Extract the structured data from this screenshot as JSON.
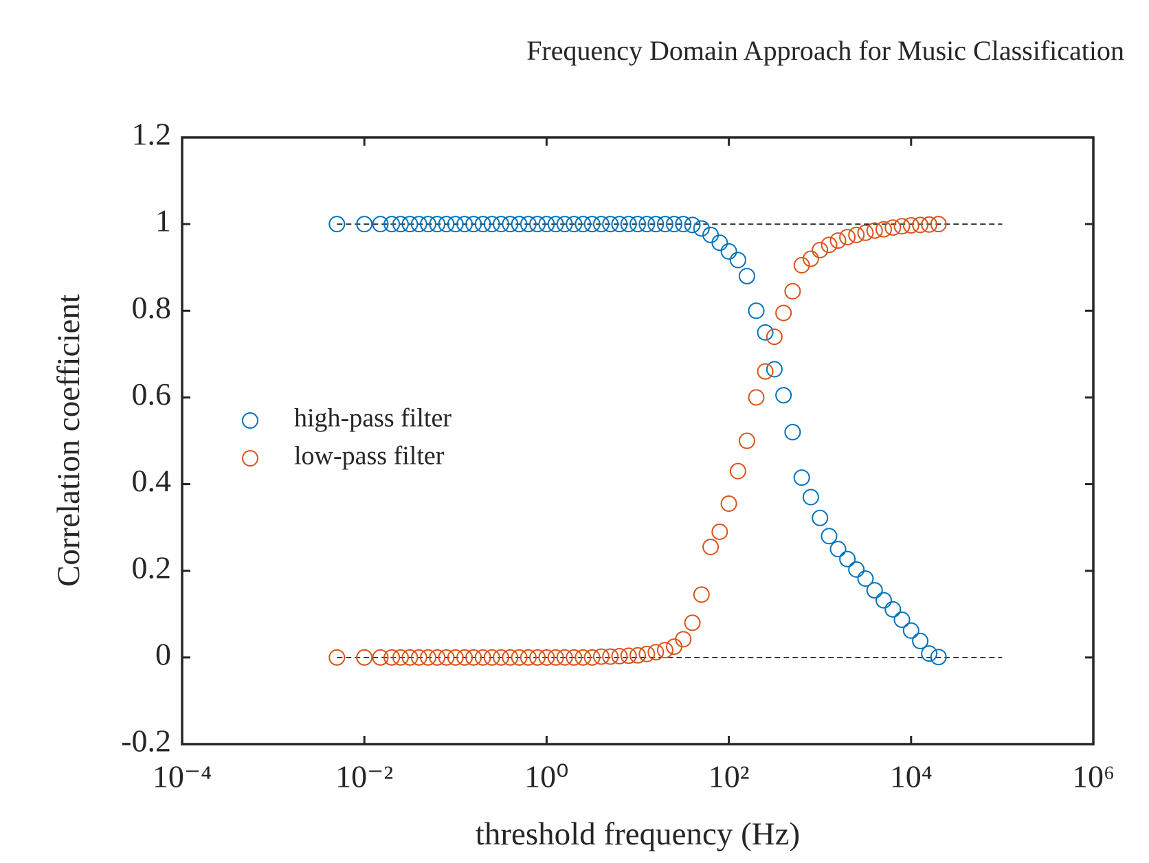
{
  "chart_data": {
    "type": "scatter",
    "title": "Frequency Domain Approach for Music Classification",
    "x_label": "threshold frequency (Hz)",
    "y_label": "Correlation coefficient",
    "x_scale": "log",
    "x": [
      0.005,
      0.01,
      0.015,
      0.02,
      0.025,
      0.0316,
      0.0398,
      0.0501,
      0.0631,
      0.0794,
      0.1,
      0.126,
      0.158,
      0.2,
      0.251,
      0.316,
      0.398,
      0.501,
      0.631,
      0.794,
      1,
      1.26,
      1.58,
      2,
      2.51,
      3.16,
      3.98,
      5.01,
      6.31,
      7.94,
      10,
      12.6,
      15.8,
      20,
      25.1,
      31.6,
      39.8,
      50.1,
      63.1,
      79.4,
      100,
      126,
      158,
      200,
      251,
      316,
      398,
      501,
      631,
      794,
      1000,
      1260,
      1580,
      2000,
      2510,
      3160,
      3980,
      5010,
      6310,
      7940,
      10000,
      12600,
      15800,
      20000
    ],
    "series": [
      {
        "name": "high-pass filter",
        "color": "#0072BD",
        "values": [
          1,
          1,
          1,
          1,
          1,
          1,
          1,
          1,
          1,
          1,
          1,
          1,
          1,
          1,
          1,
          1,
          1,
          1,
          1,
          1,
          1,
          1,
          1,
          1,
          1,
          1,
          1,
          1,
          1,
          1,
          1,
          1,
          1,
          1,
          1,
          1,
          0.998,
          0.99,
          0.975,
          0.957,
          0.937,
          0.917,
          0.88,
          0.8,
          0.75,
          0.665,
          0.605,
          0.52,
          0.415,
          0.37,
          0.322,
          0.28,
          0.25,
          0.227,
          0.203,
          0.182,
          0.155,
          0.132,
          0.111,
          0.087,
          0.062,
          0.038,
          0.009,
          0.001
        ]
      },
      {
        "name": "low-pass filter",
        "color": "#D95319",
        "values": [
          0,
          0,
          0,
          0,
          0,
          0,
          0,
          0,
          0,
          0,
          0,
          0,
          0,
          0,
          0,
          0,
          0,
          0,
          0,
          0,
          0,
          0,
          0,
          0,
          0,
          0,
          0.002,
          0.002,
          0.003,
          0.004,
          0.005,
          0.008,
          0.012,
          0.017,
          0.025,
          0.042,
          0.08,
          0.145,
          0.255,
          0.29,
          0.355,
          0.43,
          0.5,
          0.6,
          0.66,
          0.74,
          0.795,
          0.845,
          0.905,
          0.92,
          0.94,
          0.952,
          0.962,
          0.97,
          0.975,
          0.98,
          0.985,
          0.988,
          0.992,
          0.995,
          0.997,
          0.998,
          0.999,
          1
        ]
      }
    ],
    "reference_lines": [
      {
        "y": 1,
        "xrange": [
          0.005,
          100000
        ]
      },
      {
        "y": 0,
        "xrange": [
          0.005,
          100000
        ]
      }
    ],
    "xlim": [
      0.0001,
      1000000
    ],
    "xticks": [
      {
        "value": 0.0001,
        "label": "10⁻⁴"
      },
      {
        "value": 0.01,
        "label": "10⁻²"
      },
      {
        "value": 1,
        "label": "10⁰"
      },
      {
        "value": 100,
        "label": "10²"
      },
      {
        "value": 10000,
        "label": "10⁴"
      },
      {
        "value": 1000000,
        "label": "10⁶"
      }
    ],
    "ylim": [
      -0.2,
      1.2
    ],
    "yticks": [
      -0.2,
      0,
      0.2,
      0.4,
      0.6,
      0.8,
      1,
      1.2
    ],
    "grid": false,
    "legend": "left"
  }
}
